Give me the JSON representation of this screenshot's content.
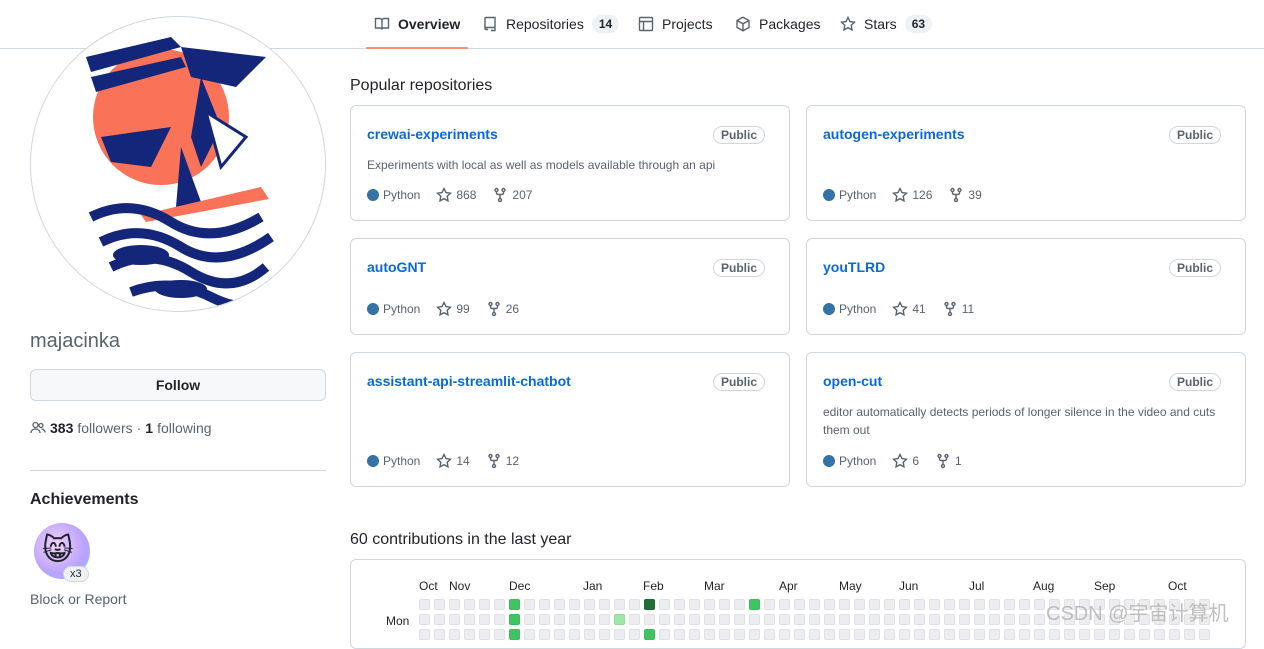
{
  "tabs": [
    {
      "label": "Overview",
      "icon": "book-icon",
      "active": true
    },
    {
      "label": "Repositories",
      "icon": "repo-icon",
      "count": "14"
    },
    {
      "label": "Projects",
      "icon": "table-icon"
    },
    {
      "label": "Packages",
      "icon": "package-icon"
    },
    {
      "label": "Stars",
      "icon": "star-icon",
      "count": "63"
    }
  ],
  "profile": {
    "username": "majacinka",
    "follow_label": "Follow",
    "followers_count": "383",
    "followers_label": "followers",
    "separator": "·",
    "following_count": "1",
    "following_label": "following",
    "achievements_title": "Achievements",
    "achievement_count": "x3",
    "report_label": "Block or Report"
  },
  "popular": {
    "title": "Popular repositories",
    "repos": [
      {
        "name": "crewai-experiments",
        "visibility": "Public",
        "description": "Experiments with local as well as models available through an api",
        "language": "Python",
        "stars": "868",
        "forks": "207"
      },
      {
        "name": "autogen-experiments",
        "visibility": "Public",
        "description": "",
        "language": "Python",
        "stars": "126",
        "forks": "39"
      },
      {
        "name": "autoGNT",
        "visibility": "Public",
        "description": "",
        "language": "Python",
        "stars": "99",
        "forks": "26"
      },
      {
        "name": "youTLRD",
        "visibility": "Public",
        "description": "",
        "language": "Python",
        "stars": "41",
        "forks": "11"
      },
      {
        "name": "assistant-api-streamlit-chatbot",
        "visibility": "Public",
        "description": "",
        "language": "Python",
        "stars": "14",
        "forks": "12"
      },
      {
        "name": "open-cut",
        "visibility": "Public",
        "description": "editor automatically detects periods of longer silence in the video and cuts them out",
        "language": "Python",
        "stars": "6",
        "forks": "1"
      }
    ],
    "language_color": "#3572A5"
  },
  "contributions": {
    "title": "60 contributions in the last year",
    "months": [
      "Oct",
      "Nov",
      "Dec",
      "Jan",
      "Feb",
      "Mar",
      "Apr",
      "May",
      "Jun",
      "Jul",
      "Aug",
      "Sep",
      "Oct"
    ],
    "day_label": "Mon"
  },
  "watermark": "CSDN @宇宙计算机"
}
